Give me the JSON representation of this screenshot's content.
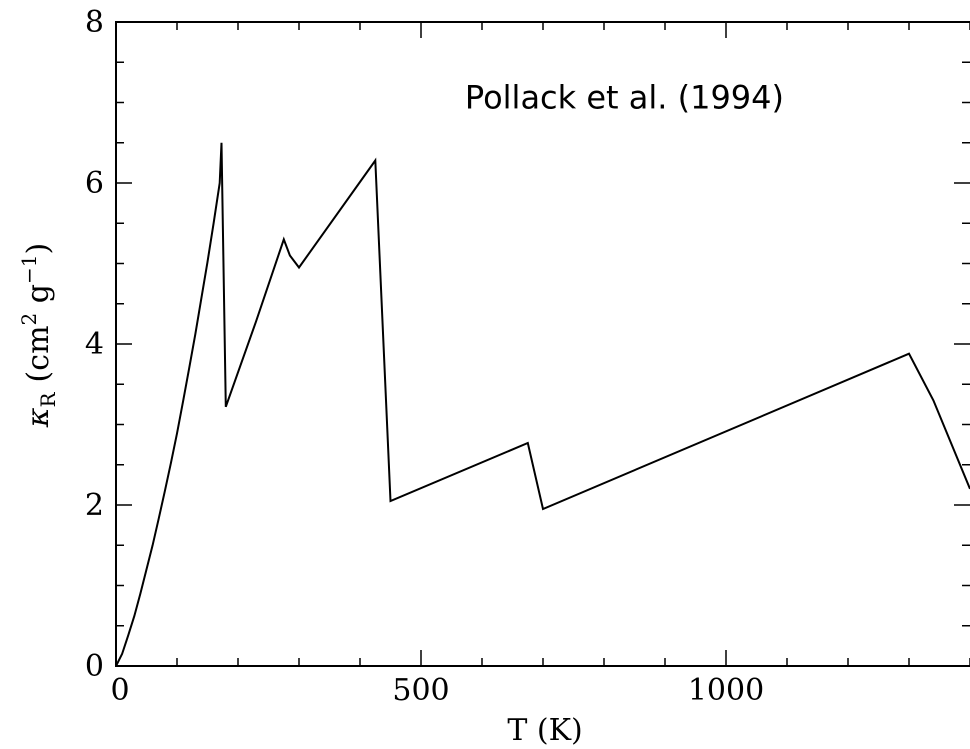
{
  "chart_data": {
    "type": "line",
    "title": "",
    "xlabel": "T (K)",
    "ylabel": {
      "symbol": "κ",
      "symbol_subscript": "R",
      "units_open": "(cm",
      "units_sup1": "2",
      "units_mid": " g",
      "units_sup2": "−1",
      "units_close": ")"
    },
    "xlim": [
      0,
      1400
    ],
    "ylim": [
      0,
      8
    ],
    "xticks": [
      0,
      500,
      1000
    ],
    "xtick_labels": [
      "0",
      "500",
      "1000"
    ],
    "yticks": [
      0,
      2,
      4,
      6,
      8
    ],
    "ytick_labels": [
      "0",
      "2",
      "4",
      "6",
      "8"
    ],
    "x_minor_step": 100,
    "y_minor_step": 0.5,
    "grid": false,
    "annotations": [
      {
        "text": "Pollack et al. (1994)",
        "x": 1200,
        "y": 7.05
      }
    ],
    "series": [
      {
        "x": [
          0,
          10,
          20,
          30,
          40,
          50,
          60,
          70,
          80,
          90,
          100,
          110,
          120,
          130,
          140,
          150,
          160,
          170,
          173,
          180,
          230,
          275,
          285,
          300,
          425,
          450,
          675,
          700,
          1300,
          1340,
          1400
        ],
        "y": [
          0,
          0.15,
          0.38,
          0.62,
          0.9,
          1.2,
          1.5,
          1.83,
          2.17,
          2.52,
          2.89,
          3.29,
          3.7,
          4.12,
          4.57,
          5.02,
          5.5,
          6.0,
          6.5,
          3.22,
          4.29,
          5.3,
          5.1,
          4.95,
          6.28,
          2.05,
          2.77,
          1.95,
          3.88,
          3.3,
          2.2
        ]
      }
    ]
  }
}
